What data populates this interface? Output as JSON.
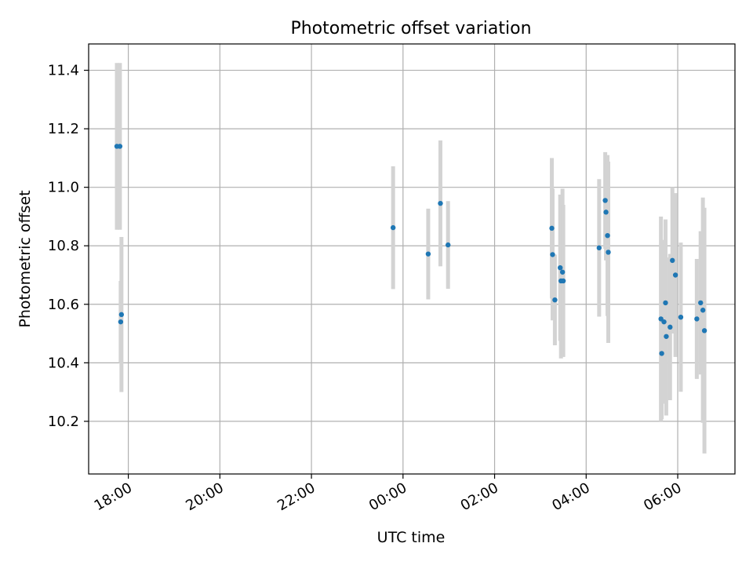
{
  "chart_data": {
    "type": "scatter",
    "title": "Photometric offset variation",
    "xlabel": "UTC time",
    "ylabel": "Photometric offset",
    "xlim": [
      "17:08",
      "07:15"
    ],
    "ylim": [
      10.02,
      11.49
    ],
    "x_ticks": [
      "18:00",
      "20:00",
      "22:00",
      "00:00",
      "02:00",
      "04:00",
      "06:00"
    ],
    "y_ticks": [
      "10.2",
      "10.4",
      "10.6",
      "10.8",
      "11.0",
      "11.2",
      "11.4"
    ],
    "grid": true,
    "colors": {
      "points": "#1f77b4",
      "error_bars": "#d3d3d3"
    },
    "series": [
      {
        "points": [
          {
            "time": "17:45",
            "y": 11.14,
            "yerr": 0.285
          },
          {
            "time": "17:49",
            "y": 11.14,
            "yerr": 0.285
          },
          {
            "time": "17:50",
            "y": 10.54,
            "yerr": 0.14
          },
          {
            "time": "17:51",
            "y": 10.565,
            "yerr": 0.265
          },
          {
            "time": "23:47",
            "y": 10.862,
            "yerr": 0.21
          },
          {
            "time": "00:33",
            "y": 10.772,
            "yerr": 0.155
          },
          {
            "time": "00:49",
            "y": 10.945,
            "yerr": 0.215
          },
          {
            "time": "00:59",
            "y": 10.803,
            "yerr": 0.15
          },
          {
            "time": "03:15",
            "y": 10.86,
            "yerr": 0.24
          },
          {
            "time": "03:16",
            "y": 10.77,
            "yerr": 0.225
          },
          {
            "time": "03:19",
            "y": 10.615,
            "yerr": 0.155
          },
          {
            "time": "03:26",
            "y": 10.725,
            "yerr": 0.25
          },
          {
            "time": "03:27",
            "y": 10.68,
            "yerr": 0.265
          },
          {
            "time": "03:29",
            "y": 10.71,
            "yerr": 0.285
          },
          {
            "time": "03:30",
            "y": 10.68,
            "yerr": 0.26
          },
          {
            "time": "04:17",
            "y": 10.793,
            "yerr": 0.235
          },
          {
            "time": "04:25",
            "y": 10.955,
            "yerr": 0.165
          },
          {
            "time": "04:26",
            "y": 10.915,
            "yerr": 0.165
          },
          {
            "time": "04:28",
            "y": 10.835,
            "yerr": 0.275
          },
          {
            "time": "04:29",
            "y": 10.778,
            "yerr": 0.31
          },
          {
            "time": "05:38",
            "y": 10.55,
            "yerr": 0.35
          },
          {
            "time": "05:39",
            "y": 10.432,
            "yerr": 0.225
          },
          {
            "time": "05:42",
            "y": 10.54,
            "yerr": 0.28
          },
          {
            "time": "05:44",
            "y": 10.605,
            "yerr": 0.285
          },
          {
            "time": "05:45",
            "y": 10.49,
            "yerr": 0.27
          },
          {
            "time": "05:50",
            "y": 10.522,
            "yerr": 0.25
          },
          {
            "time": "05:53",
            "y": 10.75,
            "yerr": 0.25
          },
          {
            "time": "05:57",
            "y": 10.7,
            "yerr": 0.28
          },
          {
            "time": "06:04",
            "y": 10.556,
            "yerr": 0.255
          },
          {
            "time": "06:25",
            "y": 10.55,
            "yerr": 0.205
          },
          {
            "time": "06:30",
            "y": 10.605,
            "yerr": 0.245
          },
          {
            "time": "06:33",
            "y": 10.58,
            "yerr": 0.385
          },
          {
            "time": "06:35",
            "y": 10.51,
            "yerr": 0.42
          }
        ]
      }
    ]
  }
}
